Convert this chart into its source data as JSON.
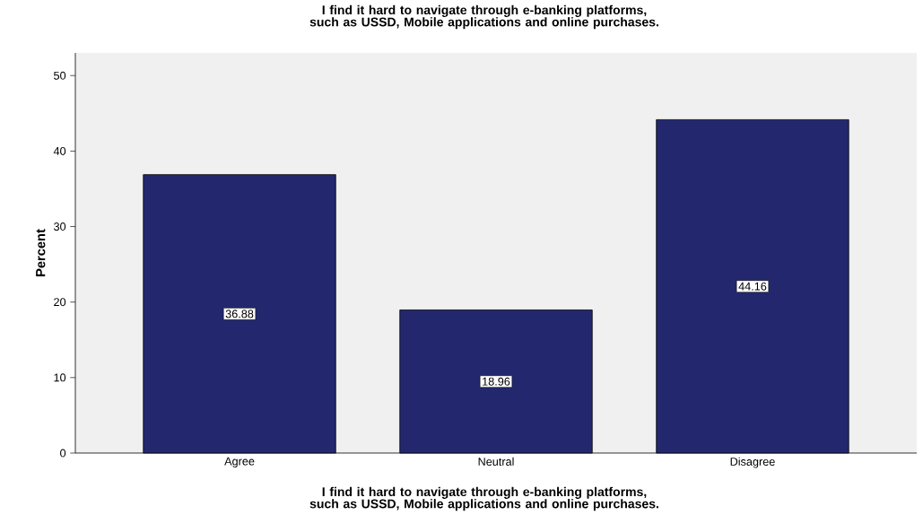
{
  "chart_data": {
    "type": "bar",
    "title": "I find it hard to navigate through e-banking platforms, such as USSD, Mobile applications and online purchases.",
    "xlabel": "I find it hard to navigate through e-banking platforms, such as USSD, Mobile applications and online purchases.",
    "ylabel": "Percent",
    "categories": [
      "Agree",
      "Neutral",
      "Disagree"
    ],
    "values": [
      36.88,
      18.96,
      44.16
    ],
    "value_labels": [
      "36.88",
      "18.96",
      "44.16"
    ],
    "color": "#23286e",
    "ylim": [
      0,
      53
    ],
    "yticks": [
      0,
      10,
      20,
      30,
      40,
      50
    ],
    "grid": false
  }
}
